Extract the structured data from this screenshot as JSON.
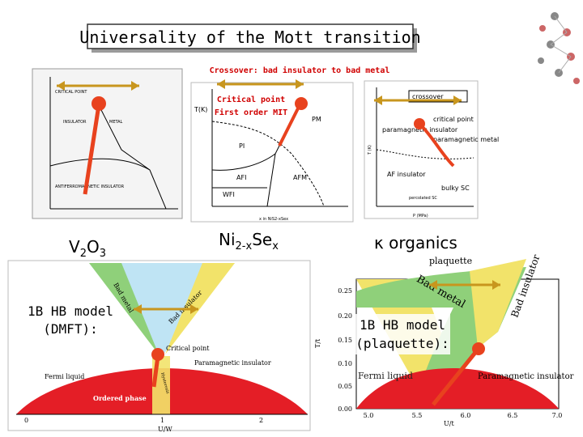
{
  "title": "Universality of the Mott transition",
  "crossover": "Crossover: bad insulator to bad metal",
  "critical_point": [
    "Critical point",
    "First order MIT"
  ],
  "material_labels": {
    "v2o3": [
      "V",
      "2",
      "O",
      "3"
    ],
    "nise": [
      "Ni",
      "2-x",
      "Se",
      "x"
    ],
    "organics": "κ organics"
  },
  "model_labels": {
    "dmft": [
      "1B HB model",
      "(DMFT):"
    ],
    "plaquette": [
      "1B HB model",
      "(plaquette):"
    ]
  },
  "figure_v2o3": {
    "labels": [
      "CRITICAL POINT",
      "INSULATOR",
      "METAL",
      "ANTIFERROMAGNETIC INSULATOR"
    ]
  },
  "figure_nise": {
    "y_axis": "T(K)",
    "x_axis": "x in NiS2-xSex",
    "regions": [
      "PI",
      "PM",
      "AFI",
      "AFM",
      "WFI"
    ]
  },
  "figure_organics": {
    "y_axis": "T (K)",
    "x_axis": "P (MPa)",
    "labels": [
      "crossover",
      "critical point",
      "paramagnetic insulator",
      "paramagnetic metal",
      "AF insulator",
      "bulky SC",
      "percolated SC"
    ]
  },
  "figure_dmft": {
    "labels": [
      "Bad metal",
      "Bad insulator",
      "Critical point",
      "Paramagnetic insulator",
      "Fermi liquid",
      "Ordered phase",
      "Hysteresis"
    ],
    "x_axis": "U/W",
    "x_ticks": [
      "0",
      "1",
      "2"
    ]
  },
  "figure_plaquette": {
    "top_label": "plaquette",
    "labels": [
      "Bad metal",
      "Bad insulator",
      "Fermi liquid",
      "Paramagnetic insulator"
    ],
    "y_axis": "T/t",
    "x_axis": "U/t",
    "y_ticks": [
      "0.25",
      "0.20",
      "0.15",
      "0.10",
      "0.05",
      "0.00"
    ],
    "x_ticks": [
      "5.0",
      "5.5",
      "6.0",
      "6.5",
      "7.0"
    ]
  }
}
